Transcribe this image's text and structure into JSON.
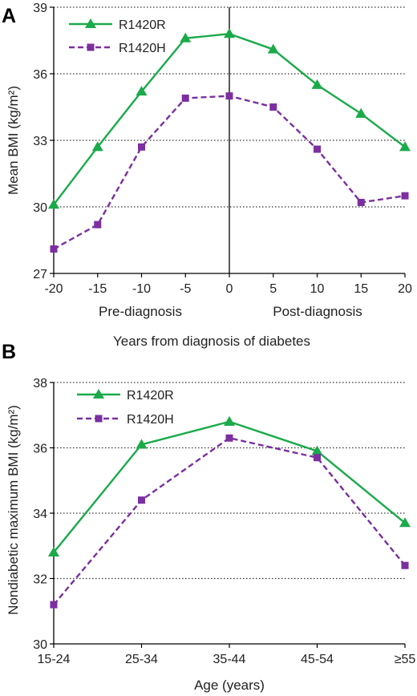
{
  "chart_data": [
    {
      "type": "line",
      "panel_label": "A",
      "x": [
        -20,
        -15,
        -10,
        -5,
        0,
        5,
        10,
        15,
        20
      ],
      "x_tick_labels": [
        "-20",
        "-15",
        "-10",
        "-5",
        "0",
        "5",
        "10",
        "15",
        "20"
      ],
      "y_ticks": [
        27,
        30,
        33,
        36,
        39
      ],
      "ylim": [
        27,
        39
      ],
      "xlim": [
        -20,
        20
      ],
      "ylabel": "Mean BMI (kg/m²)",
      "xlabel": "Years from diagnosis of diabetes",
      "region_labels": [
        "Pre-diagnosis",
        "Post-diagnosis"
      ],
      "grid": "horizontal dotted",
      "legend_position": "top-left",
      "series": [
        {
          "name": "R1420R",
          "color": "#1aaa4a",
          "marker": "triangle",
          "line": "solid",
          "values": [
            30.1,
            32.7,
            35.2,
            37.6,
            37.8,
            37.1,
            35.5,
            34.2,
            32.7
          ]
        },
        {
          "name": "R1420H",
          "color": "#7b2fa0",
          "marker": "square",
          "line": "dashed",
          "values": [
            28.1,
            29.2,
            32.7,
            34.9,
            35.0,
            34.5,
            32.6,
            30.2,
            30.5
          ]
        }
      ]
    },
    {
      "type": "line",
      "panel_label": "B",
      "categories": [
        "15-24",
        "25-34",
        "35-44",
        "45-54",
        "≥55"
      ],
      "y_ticks": [
        30,
        32,
        34,
        36,
        38
      ],
      "ylim": [
        30,
        38
      ],
      "ylabel": "Nondiabetic maximum BMI (kg/m²)",
      "xlabel": "Age (years)",
      "grid": "horizontal dotted",
      "legend_position": "top-left",
      "series": [
        {
          "name": "R1420R",
          "color": "#1aaa4a",
          "marker": "triangle",
          "line": "solid",
          "values": [
            32.8,
            36.1,
            36.8,
            35.9,
            33.7
          ]
        },
        {
          "name": "R1420H",
          "color": "#7b2fa0",
          "marker": "square",
          "line": "dashed",
          "values": [
            31.2,
            34.4,
            36.3,
            35.7,
            32.4
          ]
        }
      ]
    }
  ]
}
